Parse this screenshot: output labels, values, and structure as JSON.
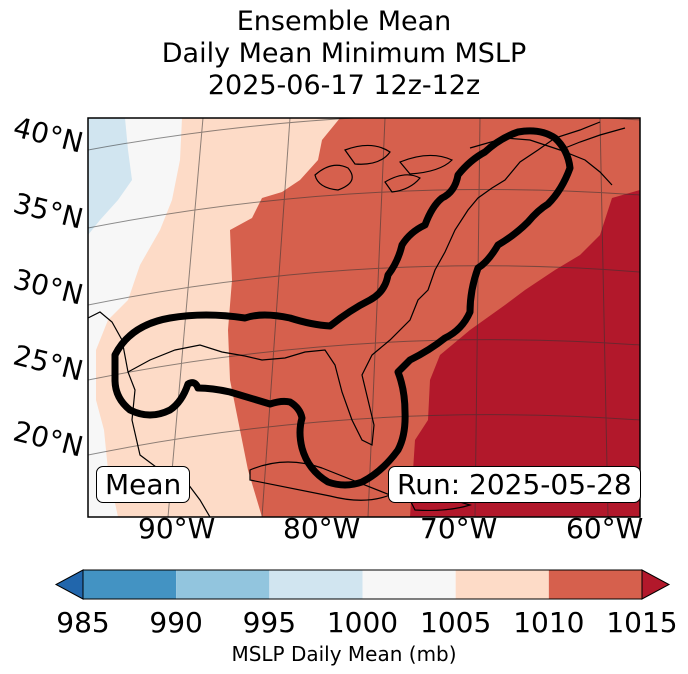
{
  "title": {
    "line1": "Ensemble Mean",
    "line2": "Daily Mean Minimum MSLP",
    "line3": "2025-06-17 12z-12z"
  },
  "map": {
    "lat_labels": [
      "40°N",
      "35°N",
      "30°N",
      "25°N",
      "20°N"
    ],
    "lon_labels": [
      "90°W",
      "80°W",
      "70°W",
      "60°W"
    ],
    "mean_label": "Mean",
    "run_label": "Run: 2025-05-28",
    "outline_color": "#000000",
    "field_colors": {
      "lt_1000": "#d1e5f0",
      "1000_1005": "#f7f7f7",
      "1005_1010": "#fddbc7",
      "1010_1015": "#d6604d",
      "gt_1015": "#b2182b"
    }
  },
  "colorbar": {
    "label": "MSLP Daily Mean (mb)",
    "ticks": [
      "985",
      "990",
      "995",
      "1000",
      "1005",
      "1010",
      "1015"
    ],
    "bins": [
      {
        "from": 985,
        "to": 990,
        "color": "#4393c3"
      },
      {
        "from": 990,
        "to": 995,
        "color": "#92c5de"
      },
      {
        "from": 995,
        "to": 1000,
        "color": "#d1e5f0"
      },
      {
        "from": 1000,
        "to": 1005,
        "color": "#f7f7f7"
      },
      {
        "from": 1005,
        "to": 1010,
        "color": "#fddbc7"
      },
      {
        "from": 1010,
        "to": 1015,
        "color": "#d6604d"
      }
    ],
    "under_color": "#2166ac",
    "over_color": "#b2182b"
  }
}
